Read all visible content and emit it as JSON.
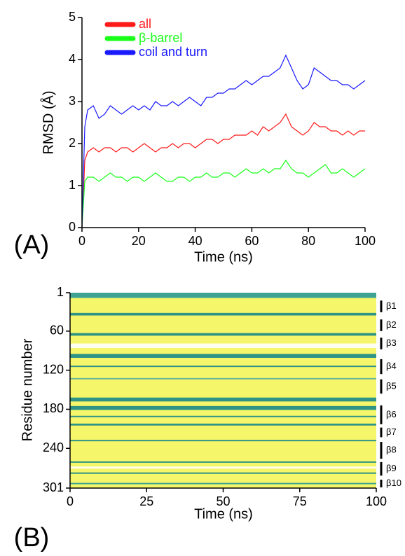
{
  "chart_data": [
    {
      "type": "line",
      "panel_label": "(A)",
      "xlabel": "Time (ns)",
      "ylabel": "RMSD (Å)",
      "x": [
        0,
        1,
        2,
        4,
        6,
        8,
        10,
        12,
        14,
        16,
        18,
        20,
        22,
        24,
        26,
        28,
        30,
        32,
        34,
        36,
        38,
        40,
        42,
        44,
        46,
        48,
        50,
        52,
        54,
        56,
        58,
        60,
        62,
        64,
        66,
        68,
        70,
        72,
        74,
        76,
        78,
        80,
        82,
        84,
        86,
        88,
        90,
        92,
        94,
        96,
        98,
        100
      ],
      "series": [
        {
          "name": "all",
          "color": "#ff1a1a",
          "values": [
            0,
            1.6,
            1.8,
            1.9,
            1.8,
            1.9,
            1.9,
            1.8,
            1.9,
            1.9,
            1.8,
            1.9,
            2.0,
            1.9,
            1.8,
            1.9,
            1.9,
            2.0,
            1.9,
            2.0,
            2.0,
            1.9,
            2.0,
            2.1,
            2.1,
            2.0,
            2.1,
            2.1,
            2.2,
            2.2,
            2.2,
            2.3,
            2.2,
            2.4,
            2.3,
            2.4,
            2.5,
            2.7,
            2.4,
            2.3,
            2.2,
            2.3,
            2.5,
            2.4,
            2.4,
            2.3,
            2.3,
            2.2,
            2.3,
            2.2,
            2.3,
            2.3
          ]
        },
        {
          "name": "β-barrel",
          "color": "#1aff1a",
          "values": [
            0,
            1.1,
            1.2,
            1.2,
            1.1,
            1.2,
            1.3,
            1.2,
            1.2,
            1.1,
            1.2,
            1.2,
            1.1,
            1.2,
            1.3,
            1.2,
            1.1,
            1.1,
            1.2,
            1.2,
            1.1,
            1.2,
            1.2,
            1.3,
            1.2,
            1.2,
            1.3,
            1.3,
            1.2,
            1.3,
            1.4,
            1.3,
            1.3,
            1.4,
            1.3,
            1.4,
            1.4,
            1.6,
            1.4,
            1.3,
            1.3,
            1.2,
            1.3,
            1.4,
            1.5,
            1.3,
            1.3,
            1.4,
            1.3,
            1.2,
            1.3,
            1.4
          ]
        },
        {
          "name": "coil and turn",
          "color": "#1a1aff",
          "values": [
            0,
            2.4,
            2.8,
            2.9,
            2.6,
            2.7,
            2.9,
            2.8,
            2.7,
            2.8,
            2.9,
            2.8,
            2.9,
            2.8,
            3.0,
            2.9,
            2.9,
            3.0,
            2.9,
            3.0,
            3.1,
            3.0,
            2.9,
            3.1,
            3.1,
            3.2,
            3.2,
            3.3,
            3.3,
            3.4,
            3.5,
            3.4,
            3.5,
            3.6,
            3.6,
            3.7,
            3.8,
            4.1,
            3.8,
            3.5,
            3.3,
            3.4,
            3.8,
            3.7,
            3.6,
            3.5,
            3.5,
            3.4,
            3.4,
            3.3,
            3.4,
            3.5
          ]
        }
      ],
      "xlim": [
        0,
        100
      ],
      "xticks": [
        0,
        20,
        40,
        60,
        80,
        100
      ],
      "ylim": [
        0,
        5
      ],
      "yticks": [
        0,
        1,
        2,
        3,
        4,
        5
      ],
      "legend": "upper left"
    },
    {
      "type": "heatmap",
      "panel_label": "(B)",
      "xlabel": "Time (ns)",
      "ylabel": "Residue number",
      "xlim": [
        0,
        100
      ],
      "xticks": [
        0,
        25,
        50,
        75,
        100
      ],
      "ylim": [
        1,
        301
      ],
      "yticks": [
        1,
        60,
        120,
        180,
        240,
        301
      ],
      "background_color": "#f6f66a",
      "bands": [
        {
          "start": 1,
          "end": 9,
          "color": "#2a9a9a"
        },
        {
          "start": 32,
          "end": 36,
          "color": "#1a8a8a"
        },
        {
          "start": 63,
          "end": 67,
          "color": "#1a8a8a"
        },
        {
          "start": 79,
          "end": 86,
          "color": "#ffffff"
        },
        {
          "start": 95,
          "end": 101,
          "color": "#1a8a8a"
        },
        {
          "start": 113,
          "end": 115,
          "color": "#1a8a8a"
        },
        {
          "start": 132,
          "end": 134,
          "color": "#5fb0a0"
        },
        {
          "start": 162,
          "end": 168,
          "color": "#1a8a8a"
        },
        {
          "start": 175,
          "end": 181,
          "color": "#1a8a8a"
        },
        {
          "start": 190,
          "end": 192,
          "color": "#1a8a8a"
        },
        {
          "start": 202,
          "end": 205,
          "color": "#1a8a8a"
        },
        {
          "start": 227,
          "end": 229,
          "color": "#1a8a8a"
        },
        {
          "start": 260,
          "end": 262,
          "color": "#1a8a8a"
        },
        {
          "start": 268,
          "end": 271,
          "color": "#ffffff"
        },
        {
          "start": 277,
          "end": 279,
          "color": "#1a8a8a"
        },
        {
          "start": 293,
          "end": 295,
          "color": "#2a9a9a"
        }
      ],
      "strands": [
        {
          "label": "β1",
          "start": 12,
          "end": 32
        },
        {
          "label": "β2",
          "start": 41,
          "end": 61
        },
        {
          "label": "β3",
          "start": 69,
          "end": 89
        },
        {
          "label": "β4",
          "start": 102,
          "end": 127
        },
        {
          "label": "β5",
          "start": 133,
          "end": 157
        },
        {
          "label": "β6",
          "start": 173,
          "end": 204
        },
        {
          "label": "β7",
          "start": 207,
          "end": 224
        },
        {
          "label": "β8",
          "start": 229,
          "end": 257
        },
        {
          "label": "β9",
          "start": 260,
          "end": 283
        },
        {
          "label": "β10",
          "start": 287,
          "end": 301
        }
      ]
    }
  ]
}
